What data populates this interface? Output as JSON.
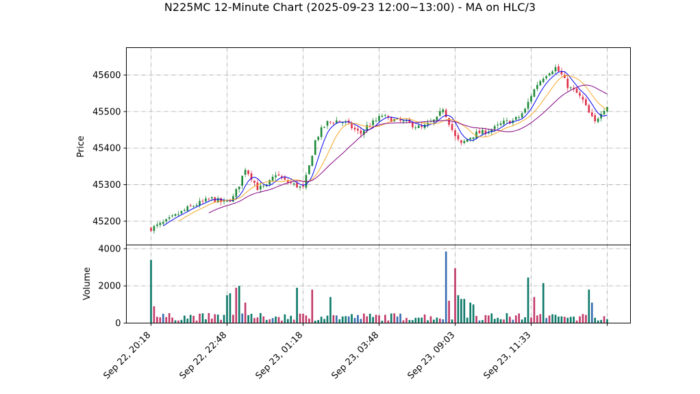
{
  "chart_data": {
    "type": "candlestick",
    "title": "N225MC 12-Minute Chart (2025-09-23 12:00~13:00) - MA on HLC/3",
    "price_panel": {
      "ylabel": "Price",
      "ylim": [
        45135,
        45675
      ],
      "yticks": [
        45200,
        45300,
        45400,
        45500,
        45600
      ],
      "ytick_labels": [
        "45200",
        "45300",
        "45400",
        "45500",
        "45600"
      ],
      "grid": true
    },
    "volume_panel": {
      "ylabel": "Volume",
      "ylim": [
        0,
        4200
      ],
      "yticks": [
        0,
        2000,
        4000
      ],
      "ytick_labels": [
        "0",
        "2000",
        "4000"
      ],
      "grid": true
    },
    "x_tick_labels": [
      "Sep 22, 20:18",
      "Sep 22, 22:48",
      "Sep 23, 01:18",
      "Sep 23, 03:48",
      "Sep 23, 09:03",
      "Sep 23, 11:33"
    ],
    "x_tick_bars": [
      0,
      25,
      50,
      75,
      100,
      125
    ],
    "bar_count": 151,
    "colors": {
      "up": "#1f8a3a",
      "down": "#e0324a",
      "vol_up": "#0d7a6a",
      "vol_down": "#c23b6b",
      "vol_mid": "#3a6fb0",
      "ma_fast": "#0000ee",
      "ma_mid": "#f5a623",
      "ma_slow": "#800080"
    },
    "price_anchors": [
      [
        0,
        45180
      ],
      [
        4,
        45195
      ],
      [
        8,
        45215
      ],
      [
        12,
        45235
      ],
      [
        16,
        45250
      ],
      [
        20,
        45262
      ],
      [
        24,
        45250
      ],
      [
        27,
        45265
      ],
      [
        29,
        45300
      ],
      [
        31,
        45345
      ],
      [
        33,
        45320
      ],
      [
        35,
        45290
      ],
      [
        38,
        45295
      ],
      [
        41,
        45330
      ],
      [
        44,
        45310
      ],
      [
        47,
        45300
      ],
      [
        50,
        45290
      ],
      [
        52,
        45350
      ],
      [
        54,
        45420
      ],
      [
        56,
        45450
      ],
      [
        58,
        45470
      ],
      [
        61,
        45475
      ],
      [
        64,
        45470
      ],
      [
        67,
        45450
      ],
      [
        69,
        45440
      ],
      [
        71,
        45460
      ],
      [
        74,
        45475
      ],
      [
        76,
        45490
      ],
      [
        78,
        45480
      ],
      [
        81,
        45475
      ],
      [
        84,
        45470
      ],
      [
        87,
        45460
      ],
      [
        89,
        45455
      ],
      [
        92,
        45470
      ],
      [
        94,
        45480
      ],
      [
        96,
        45510
      ],
      [
        98,
        45470
      ],
      [
        100,
        45430
      ],
      [
        102,
        45410
      ],
      [
        104,
        45425
      ],
      [
        107,
        45440
      ],
      [
        110,
        45445
      ],
      [
        113,
        45455
      ],
      [
        116,
        45470
      ],
      [
        119,
        45475
      ],
      [
        121,
        45485
      ],
      [
        123,
        45505
      ],
      [
        125,
        45545
      ],
      [
        127,
        45575
      ],
      [
        129,
        45595
      ],
      [
        131,
        45610
      ],
      [
        133,
        45620
      ],
      [
        135,
        45600
      ],
      [
        137,
        45570
      ],
      [
        140,
        45550
      ],
      [
        142,
        45530
      ],
      [
        144,
        45495
      ],
      [
        146,
        45470
      ],
      [
        148,
        45500
      ],
      [
        150,
        45515
      ]
    ],
    "volume_spikes": [
      [
        0,
        3400
      ],
      [
        1,
        900
      ],
      [
        25,
        1500
      ],
      [
        26,
        1600
      ],
      [
        28,
        1900
      ],
      [
        29,
        2000
      ],
      [
        31,
        1100
      ],
      [
        48,
        1900
      ],
      [
        53,
        1800
      ],
      [
        59,
        1400
      ],
      [
        97,
        3850
      ],
      [
        98,
        1200
      ],
      [
        100,
        2950
      ],
      [
        101,
        1500
      ],
      [
        102,
        1300
      ],
      [
        103,
        1300
      ],
      [
        105,
        1100
      ],
      [
        106,
        1000
      ],
      [
        124,
        2450
      ],
      [
        126,
        1400
      ],
      [
        129,
        2150
      ],
      [
        144,
        1800
      ],
      [
        145,
        1100
      ]
    ],
    "volume_base": 320
  }
}
